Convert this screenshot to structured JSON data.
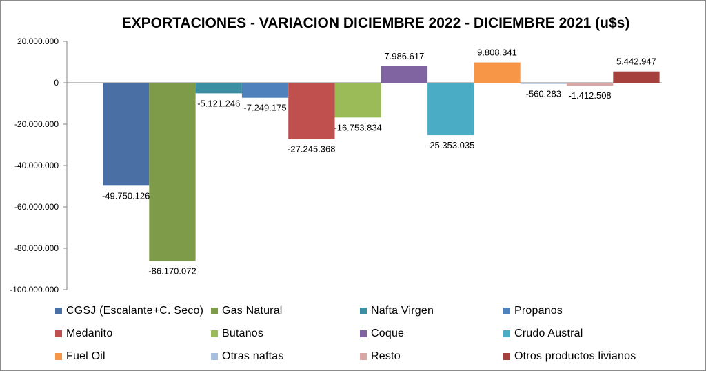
{
  "chart_data": {
    "type": "bar",
    "title": "EXPORTACIONES - VARIACION DICIEMBRE 2022 - DICIEMBRE 2021 (u$s)",
    "ylim": [
      -100000000,
      20000000
    ],
    "yticks": [
      20000000,
      0,
      -20000000,
      -40000000,
      -60000000,
      -80000000,
      -100000000
    ],
    "ytick_labels": [
      "20.000.000",
      "0",
      "-20.000.000",
      "-40.000.000",
      "-60.000.000",
      "-80.000.000",
      "-100.000.000"
    ],
    "grid": false,
    "legend_position": "bottom",
    "series": [
      {
        "name": "CGSJ (Escalante+C. Seco)",
        "value": -49750126,
        "label": "-49.750.126",
        "color": "#4a6fa5"
      },
      {
        "name": "Gas Natural",
        "value": -86170072,
        "label": "-86.170.072",
        "color": "#7d9b48"
      },
      {
        "name": "Nafta Virgen",
        "value": -5121246,
        "label": "-5.121.246",
        "color": "#3a8fa3"
      },
      {
        "name": "Propanos",
        "value": -7249175,
        "label": "-7.249.175",
        "color": "#4f81bd"
      },
      {
        "name": "Medanito",
        "value": -27245368,
        "label": "-27.245.368",
        "color": "#c0504d"
      },
      {
        "name": "Butanos",
        "value": -16753834,
        "label": "-16.753.834",
        "color": "#9bbb59"
      },
      {
        "name": "Coque",
        "value": 7986617,
        "label": "7.986.617",
        "color": "#8064a2"
      },
      {
        "name": "Crudo Austral",
        "value": -25353035,
        "label": "-25.353.035",
        "color": "#4bacc6"
      },
      {
        "name": "Fuel Oil",
        "value": 9808341,
        "label": "9.808.341",
        "color": "#f79646"
      },
      {
        "name": "Otras naftas",
        "value": -560283,
        "label": "-560.283",
        "color": "#a7bfde"
      },
      {
        "name": "Resto",
        "value": -1412508,
        "label": "-1.412.508",
        "color": "#d9a7a6"
      },
      {
        "name": "Otros productos livianos",
        "value": 5442947,
        "label": "5.442.947",
        "color": "#a5403c"
      }
    ]
  }
}
